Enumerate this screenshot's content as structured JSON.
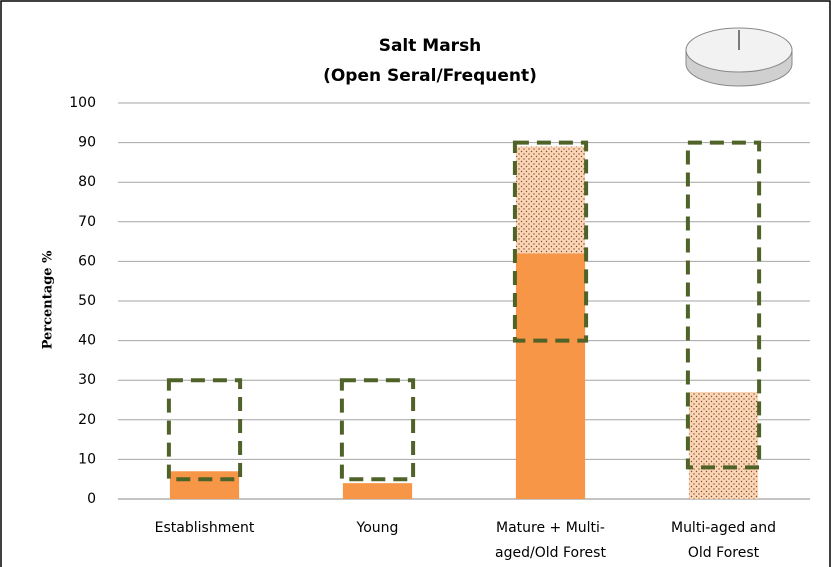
{
  "chart_data": {
    "type": "bar",
    "stacked": true,
    "title": [
      "Salt Marsh",
      "(Open Seral/Frequent)"
    ],
    "y_label": "Percentage %",
    "categories": [
      [
        "Establishment"
      ],
      [
        "Young"
      ],
      [
        "Mature + Multi-",
        "aged/Old Forest"
      ],
      [
        "Multi-aged and",
        "Old Forest"
      ]
    ],
    "series": [
      {
        "color": "#f79646",
        "pattern": "solid",
        "values": [
          7,
          4,
          62,
          0
        ]
      },
      {
        "color": "#fbd5b5",
        "pattern": "dotted",
        "values": [
          0,
          0,
          27,
          27
        ]
      }
    ],
    "ranges": [
      [
        5,
        30
      ],
      [
        5,
        30
      ],
      [
        40,
        90
      ],
      [
        8,
        90
      ]
    ],
    "range_color": "#4f6228",
    "ylim": [
      0,
      100
    ],
    "yticks": [
      0,
      10,
      20,
      30,
      40,
      50,
      60,
      70,
      80,
      90,
      100
    ],
    "grid": true
  }
}
